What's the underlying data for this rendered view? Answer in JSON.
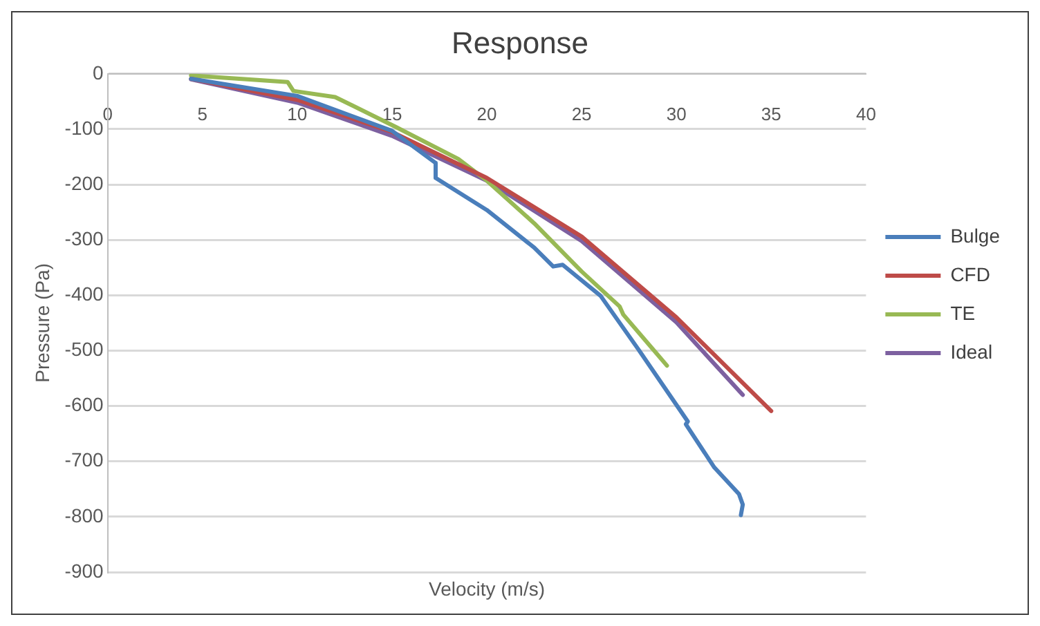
{
  "chart_data": {
    "type": "line",
    "title": "Response",
    "xlabel": "Velocity (m/s)",
    "ylabel": "Pressure (Pa)",
    "xlim": [
      0,
      40
    ],
    "xticks": [
      0,
      5,
      10,
      15,
      20,
      25,
      30,
      35,
      40
    ],
    "ylim": [
      -900,
      0
    ],
    "yticks": [
      -900,
      -800,
      -700,
      -600,
      -500,
      -400,
      -300,
      -200,
      -100,
      0
    ],
    "grid": "y",
    "legend": "right",
    "marker": "none",
    "line_style": "solid",
    "series": [
      {
        "name": "Bulge",
        "color": "#4a7ebb",
        "x": [
          4.4,
          10,
          15,
          17.3,
          17.3,
          20,
          22.5,
          23.5,
          24,
          26,
          28,
          30.6,
          30.5,
          32,
          33.3,
          33.5,
          33.4
        ],
        "values": [
          -9,
          -40,
          -103,
          -161,
          -188,
          -246,
          -314,
          -348,
          -345,
          -401,
          -498,
          -628,
          -633,
          -711,
          -759,
          -778,
          -797
        ]
      },
      {
        "name": "CFD",
        "color": "#be4b48",
        "x": [
          4.4,
          10,
          15,
          20,
          25,
          30,
          35
        ],
        "values": [
          -9,
          -47,
          -105,
          -188,
          -294,
          -440,
          -609
        ]
      },
      {
        "name": "TE",
        "color": "#98b954",
        "x": [
          4.4,
          9.5,
          9.8,
          12,
          15.2,
          18.5,
          20,
          22.5,
          25,
          27,
          27.2,
          29.5
        ],
        "values": [
          -3,
          -15,
          -31,
          -42,
          -96,
          -154,
          -193,
          -270,
          -357,
          -420,
          -435,
          -527
        ]
      },
      {
        "name": "Ideal",
        "color": "#7d60a0",
        "x": [
          4.4,
          10,
          15,
          20,
          25,
          30,
          33.5
        ],
        "values": [
          -10,
          -52,
          -112,
          -193,
          -302,
          -449,
          -580
        ]
      }
    ]
  }
}
